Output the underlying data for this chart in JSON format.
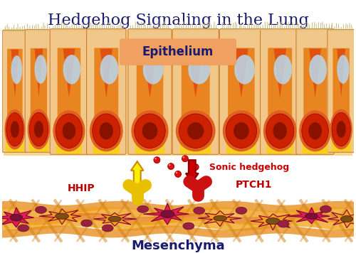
{
  "title": "Hedgehog Signaling in the Lung",
  "title_color": "#1a1a6e",
  "title_fontsize": 16,
  "epithelium_label": "Epithelium",
  "epithelium_label_color": "#1a1a6e",
  "mesenchyma_label": "Mesenchyma",
  "mesenchyma_label_color": "#1a1a6e",
  "sonic_label": "Sonic hedgehog",
  "sonic_label_color": "#cc0000",
  "hhip_label": "HHIP",
  "hhip_label_color": "#bb0000",
  "ptch1_label": "PTCH1",
  "ptch1_label_color": "#bb0000",
  "background_color": "#ffffff",
  "epi_bg": "#f5d090",
  "cell_fill_light": "#f8dba0",
  "cell_fill_orange": "#e88020",
  "cell_fill_yellow": "#f5c030",
  "nucleus_fill": "#cc2200",
  "spike_color": "#e05015",
  "vacuole_color": "#aaccee",
  "cilia_color": "#c8c8a0",
  "arrow_up_fill": "#ffee00",
  "arrow_up_edge": "#cc8800",
  "arrow_down_fill": "#cc0000",
  "arrow_down_edge": "#880000",
  "hhip_receptor_color": "#e8c000",
  "ptch1_receptor_color": "#cc1111",
  "sonic_sphere_fill": "#dd1111",
  "sonic_sphere_edge": "#990000",
  "mesh_fill": "#f0a820",
  "mesh_edge": "#c07010",
  "fibroblast_fill": "#dd2050",
  "fibroblast_edge": "#880030",
  "fibroblast_nucleus": "#7a1040",
  "lbl_bg_color": "#f0a060"
}
